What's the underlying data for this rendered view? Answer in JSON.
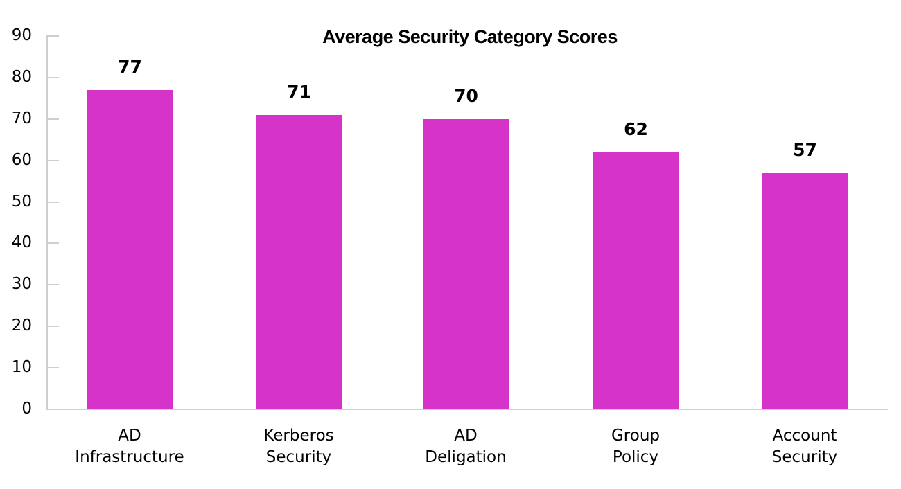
{
  "chart_data": {
    "type": "bar",
    "title": "Average Security Category Scores",
    "xlabel": "",
    "ylabel": "",
    "categories": [
      "AD Infrastructure",
      "Kerberos Security",
      "AD Deligation",
      "Group Policy",
      "Account Security"
    ],
    "category_lines": [
      [
        "AD",
        "Infrastructure"
      ],
      [
        "Kerberos",
        "Security"
      ],
      [
        "AD",
        "Deligation"
      ],
      [
        "Group",
        "Policy"
      ],
      [
        "Account",
        "Security"
      ]
    ],
    "values": [
      77,
      71,
      70,
      62,
      57
    ],
    "value_labels": [
      "77",
      "71",
      "70",
      "62",
      "57"
    ],
    "ylim": [
      0,
      90
    ],
    "yticks": [
      "0",
      "10",
      "20",
      "30",
      "40",
      "50",
      "60",
      "70",
      "80",
      "90"
    ],
    "grid": false,
    "legend": null,
    "bar_color": "#D633C9"
  }
}
